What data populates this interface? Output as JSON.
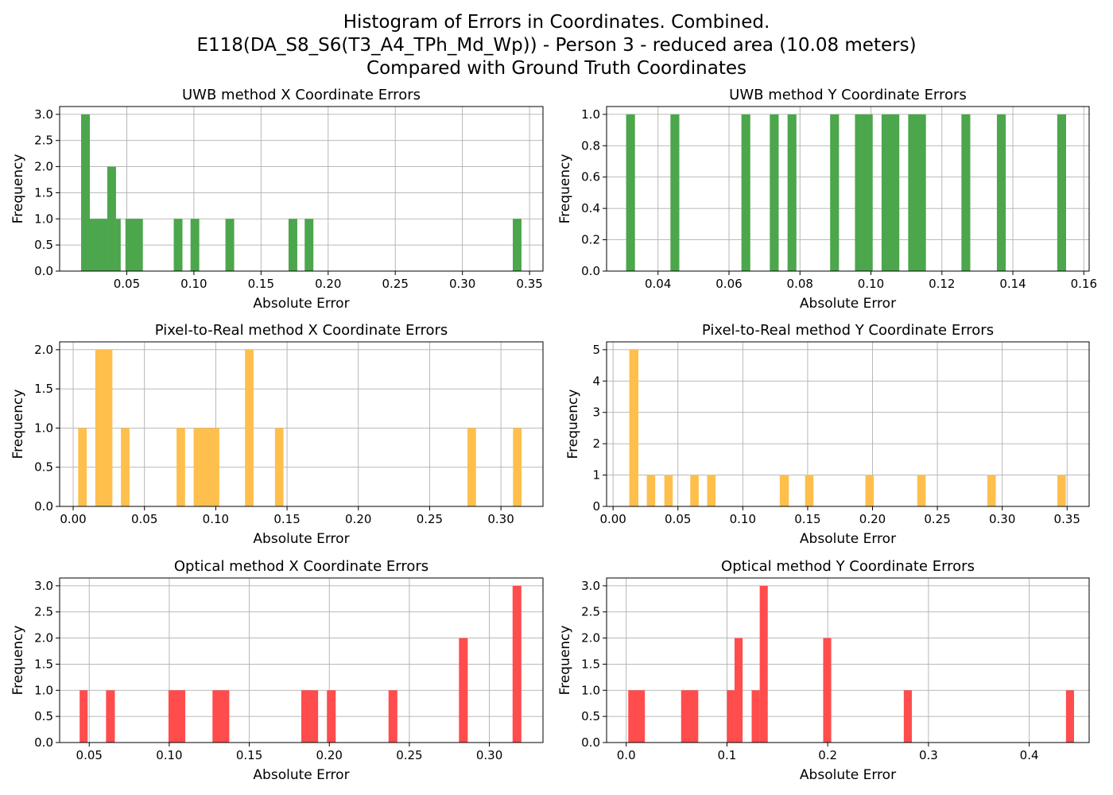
{
  "figure": {
    "title_lines": [
      "Histogram of Errors in Coordinates. Combined.",
      "E118(DA_S8_S6(T3_A4_TPh_Md_Wp)) - Person 3 - reduced area (10.08 meters)",
      "Compared with Ground Truth Coordinates"
    ]
  },
  "chart_data": [
    {
      "type": "bar",
      "title": "UWB method X Coordinate Errors",
      "xlabel": "Absolute Error",
      "ylabel": "Frequency",
      "color": "#4ca64c",
      "xlim": [
        0.0,
        0.36
      ],
      "ylim": [
        0,
        3.15
      ],
      "xticks": [
        "0.05",
        "0.10",
        "0.15",
        "0.20",
        "0.25",
        "0.30",
        "0.35"
      ],
      "yticks": [
        "0.0",
        "0.5",
        "1.0",
        "1.5",
        "2.0",
        "2.5",
        "3.0"
      ],
      "grid": true,
      "bins": [
        {
          "x0": 0.016,
          "x1": 0.0225,
          "value": 3
        },
        {
          "x0": 0.0225,
          "x1": 0.029,
          "value": 1
        },
        {
          "x0": 0.029,
          "x1": 0.0355,
          "value": 1
        },
        {
          "x0": 0.0355,
          "x1": 0.042,
          "value": 2
        },
        {
          "x0": 0.042,
          "x1": 0.0455,
          "value": 1
        },
        {
          "x0": 0.049,
          "x1": 0.062,
          "value": 1
        },
        {
          "x0": 0.085,
          "x1": 0.0915,
          "value": 1
        },
        {
          "x0": 0.0975,
          "x1": 0.104,
          "value": 1
        },
        {
          "x0": 0.1235,
          "x1": 0.13,
          "value": 1
        },
        {
          "x0": 0.1705,
          "x1": 0.177,
          "value": 1
        },
        {
          "x0": 0.1825,
          "x1": 0.189,
          "value": 1
        },
        {
          "x0": 0.3375,
          "x1": 0.344,
          "value": 1
        }
      ]
    },
    {
      "type": "bar",
      "title": "UWB method Y Coordinate Errors",
      "xlabel": "Absolute Error",
      "ylabel": "Frequency",
      "color": "#4ca64c",
      "xlim": [
        0.0255,
        0.1615
      ],
      "ylim": [
        0,
        1.05
      ],
      "xticks": [
        "0.04",
        "0.06",
        "0.08",
        "0.10",
        "0.12",
        "0.14",
        "0.16"
      ],
      "yticks": [
        "0.0",
        "0.2",
        "0.4",
        "0.6",
        "0.8",
        "1.0"
      ],
      "grid": true,
      "bins": [
        {
          "x0": 0.031,
          "x1": 0.0335,
          "value": 1
        },
        {
          "x0": 0.0435,
          "x1": 0.046,
          "value": 1
        },
        {
          "x0": 0.0635,
          "x1": 0.066,
          "value": 1
        },
        {
          "x0": 0.0715,
          "x1": 0.074,
          "value": 1
        },
        {
          "x0": 0.0765,
          "x1": 0.079,
          "value": 1
        },
        {
          "x0": 0.0885,
          "x1": 0.091,
          "value": 1
        },
        {
          "x0": 0.0955,
          "x1": 0.1005,
          "value": 1
        },
        {
          "x0": 0.103,
          "x1": 0.108,
          "value": 1
        },
        {
          "x0": 0.1105,
          "x1": 0.1155,
          "value": 1
        },
        {
          "x0": 0.1255,
          "x1": 0.128,
          "value": 1
        },
        {
          "x0": 0.1355,
          "x1": 0.138,
          "value": 1
        },
        {
          "x0": 0.1525,
          "x1": 0.155,
          "value": 1
        }
      ]
    },
    {
      "type": "bar",
      "title": "Pixel-to-Real method X Coordinate Errors",
      "xlabel": "Absolute Error",
      "ylabel": "Frequency",
      "color": "#ffbf4c",
      "xlim": [
        -0.0095,
        0.3295
      ],
      "ylim": [
        0,
        2.1
      ],
      "xticks": [
        "0.00",
        "0.05",
        "0.10",
        "0.15",
        "0.20",
        "0.25",
        "0.30"
      ],
      "yticks": [
        "0.0",
        "0.5",
        "1.0",
        "1.5",
        "2.0"
      ],
      "grid": true,
      "bins": [
        {
          "x0": 0.0035,
          "x1": 0.0095,
          "value": 1
        },
        {
          "x0": 0.0155,
          "x1": 0.0275,
          "value": 2
        },
        {
          "x0": 0.0335,
          "x1": 0.0395,
          "value": 1
        },
        {
          "x0": 0.0725,
          "x1": 0.0785,
          "value": 1
        },
        {
          "x0": 0.0845,
          "x1": 0.1025,
          "value": 1
        },
        {
          "x0": 0.1205,
          "x1": 0.1265,
          "value": 2
        },
        {
          "x0": 0.1415,
          "x1": 0.1475,
          "value": 1
        },
        {
          "x0": 0.2765,
          "x1": 0.2825,
          "value": 1
        },
        {
          "x0": 0.3085,
          "x1": 0.3145,
          "value": 1
        }
      ]
    },
    {
      "type": "bar",
      "title": "Pixel-to-Real method Y Coordinate Errors",
      "xlabel": "Absolute Error",
      "ylabel": "Frequency",
      "color": "#ffbf4c",
      "xlim": [
        -0.005,
        0.367
      ],
      "ylim": [
        0,
        5.25
      ],
      "xticks": [
        "0.00",
        "0.05",
        "0.10",
        "0.15",
        "0.20",
        "0.25",
        "0.30",
        "0.35"
      ],
      "yticks": [
        "0",
        "1",
        "2",
        "3",
        "4",
        "5"
      ],
      "grid": true,
      "bins": [
        {
          "x0": 0.0125,
          "x1": 0.0195,
          "value": 5
        },
        {
          "x0": 0.026,
          "x1": 0.0325,
          "value": 1
        },
        {
          "x0": 0.0395,
          "x1": 0.046,
          "value": 1
        },
        {
          "x0": 0.0595,
          "x1": 0.066,
          "value": 1
        },
        {
          "x0": 0.0725,
          "x1": 0.079,
          "value": 1
        },
        {
          "x0": 0.1285,
          "x1": 0.1355,
          "value": 1
        },
        {
          "x0": 0.148,
          "x1": 0.1545,
          "value": 1
        },
        {
          "x0": 0.1945,
          "x1": 0.201,
          "value": 1
        },
        {
          "x0": 0.2345,
          "x1": 0.241,
          "value": 1
        },
        {
          "x0": 0.2885,
          "x1": 0.295,
          "value": 1
        },
        {
          "x0": 0.3425,
          "x1": 0.349,
          "value": 1
        }
      ]
    },
    {
      "type": "bar",
      "title": "Optical method X Coordinate Errors",
      "xlabel": "Absolute Error",
      "ylabel": "Frequency",
      "color": "#ff4c4c",
      "xlim": [
        0.0315,
        0.3335
      ],
      "ylim": [
        0,
        3.15
      ],
      "xticks": [
        "0.05",
        "0.10",
        "0.15",
        "0.20",
        "0.25",
        "0.30"
      ],
      "yticks": [
        "0.0",
        "0.5",
        "1.0",
        "1.5",
        "2.0",
        "2.5",
        "3.0"
      ],
      "grid": true,
      "bins": [
        {
          "x0": 0.044,
          "x1": 0.049,
          "value": 1
        },
        {
          "x0": 0.0605,
          "x1": 0.066,
          "value": 1
        },
        {
          "x0": 0.0995,
          "x1": 0.11,
          "value": 1
        },
        {
          "x0": 0.127,
          "x1": 0.1375,
          "value": 1
        },
        {
          "x0": 0.1825,
          "x1": 0.193,
          "value": 1
        },
        {
          "x0": 0.1985,
          "x1": 0.204,
          "value": 1
        },
        {
          "x0": 0.237,
          "x1": 0.2425,
          "value": 1
        },
        {
          "x0": 0.281,
          "x1": 0.2865,
          "value": 2
        },
        {
          "x0": 0.3145,
          "x1": 0.32,
          "value": 3
        }
      ]
    },
    {
      "type": "bar",
      "title": "Optical method Y Coordinate Errors",
      "xlabel": "Absolute Error",
      "ylabel": "Frequency",
      "color": "#ff4c4c",
      "xlim": [
        -0.0195,
        0.4595
      ],
      "ylim": [
        0,
        3.15
      ],
      "xticks": [
        "0.0",
        "0.1",
        "0.2",
        "0.3",
        "0.4"
      ],
      "yticks": [
        "0.0",
        "0.5",
        "1.0",
        "1.5",
        "2.0",
        "2.5",
        "3.0"
      ],
      "grid": true,
      "bins": [
        {
          "x0": 0.002,
          "x1": 0.0185,
          "value": 1
        },
        {
          "x0": 0.0545,
          "x1": 0.0715,
          "value": 1
        },
        {
          "x0": 0.1,
          "x1": 0.1075,
          "value": 1
        },
        {
          "x0": 0.1075,
          "x1": 0.1155,
          "value": 2
        },
        {
          "x0": 0.1245,
          "x1": 0.1325,
          "value": 1
        },
        {
          "x0": 0.1325,
          "x1": 0.1405,
          "value": 3
        },
        {
          "x0": 0.1955,
          "x1": 0.2035,
          "value": 2
        },
        {
          "x0": 0.2755,
          "x1": 0.2835,
          "value": 1
        },
        {
          "x0": 0.4365,
          "x1": 0.4445,
          "value": 1
        }
      ]
    }
  ]
}
